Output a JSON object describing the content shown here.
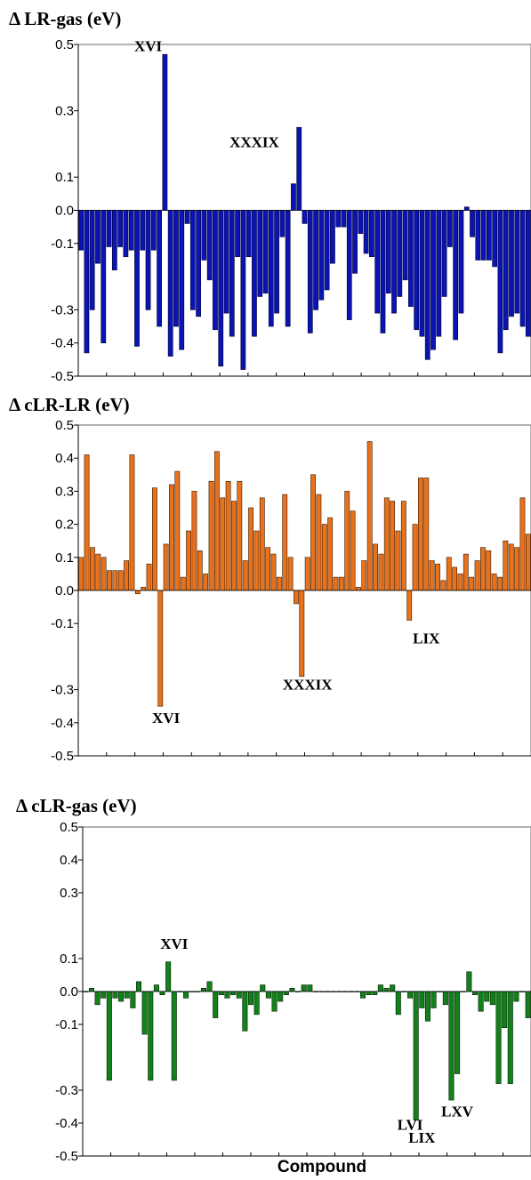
{
  "xlabel": "Compound",
  "chart_data": [
    {
      "type": "bar",
      "title": "Δ LR-gas (eV)",
      "color": "#0a14b4",
      "edge": "#000033",
      "ylim": [
        -0.5,
        0.5
      ],
      "yticks": [
        -0.5,
        -0.4,
        -0.3,
        -0.1,
        0.0,
        0.1,
        0.3,
        0.5
      ],
      "ytick_labels": [
        "-0.5",
        "-0.4",
        "-0.3",
        "-0.1",
        "0.0",
        "0.1",
        "0.3",
        "0.5"
      ],
      "annotations": [
        {
          "text": "XVI",
          "index": 12,
          "value": 0.48
        },
        {
          "text": "XXXIX",
          "index": 31,
          "value": 0.19
        }
      ],
      "values": [
        -0.12,
        -0.43,
        -0.3,
        -0.16,
        -0.4,
        -0.11,
        -0.18,
        -0.11,
        -0.14,
        -0.12,
        -0.41,
        -0.12,
        -0.3,
        -0.12,
        -0.35,
        0.47,
        -0.44,
        -0.35,
        -0.42,
        -0.04,
        -0.3,
        -0.32,
        -0.15,
        -0.21,
        -0.36,
        -0.47,
        -0.31,
        -0.38,
        -0.14,
        -0.48,
        -0.14,
        -0.38,
        -0.26,
        -0.25,
        -0.35,
        -0.31,
        -0.08,
        -0.35,
        0.08,
        0.25,
        -0.04,
        -0.37,
        -0.3,
        -0.27,
        -0.24,
        -0.16,
        -0.05,
        -0.05,
        -0.33,
        -0.19,
        -0.07,
        -0.13,
        -0.14,
        -0.31,
        -0.37,
        -0.25,
        -0.31,
        -0.26,
        -0.21,
        -0.29,
        -0.36,
        -0.38,
        -0.45,
        -0.42,
        -0.38,
        -0.26,
        -0.11,
        -0.39,
        -0.31,
        0.01,
        -0.08,
        -0.15,
        -0.15,
        -0.15,
        -0.17,
        -0.43,
        -0.36,
        -0.32,
        -0.31,
        -0.35,
        -0.38
      ]
    },
    {
      "type": "bar",
      "title": "Δ cLR-LR (eV)",
      "color": "#e8711c",
      "edge": "#3a1a00",
      "ylim": [
        -0.5,
        0.5
      ],
      "yticks": [
        -0.5,
        -0.4,
        -0.3,
        -0.1,
        0.0,
        0.1,
        0.2,
        0.3,
        0.4,
        0.5
      ],
      "ytick_labels": [
        "-0.5",
        "-0.4",
        "-0.3",
        "-0.1",
        "0.0",
        "0.1",
        "0.2",
        "0.3",
        "0.4",
        "0.5"
      ],
      "annotations": [
        {
          "text": "XVI",
          "index": 15,
          "value": -0.4
        },
        {
          "text": "XXXIX",
          "index": 40,
          "value": -0.3
        },
        {
          "text": "LIX",
          "index": 61,
          "value": -0.16
        }
      ],
      "values": [
        0.1,
        0.41,
        0.13,
        0.11,
        0.1,
        0.06,
        0.06,
        0.06,
        0.09,
        0.41,
        -0.01,
        0.01,
        0.08,
        0.31,
        -0.35,
        0.14,
        0.32,
        0.36,
        0.04,
        0.18,
        0.3,
        0.12,
        0.05,
        0.33,
        0.42,
        0.28,
        0.33,
        0.27,
        0.33,
        0.09,
        0.25,
        0.18,
        0.28,
        0.13,
        0.11,
        0.04,
        0.29,
        0.1,
        -0.04,
        -0.26,
        0.1,
        0.35,
        0.29,
        0.2,
        0.22,
        0.04,
        0.04,
        0.3,
        0.24,
        0.01,
        0.09,
        0.45,
        0.14,
        0.11,
        0.28,
        0.27,
        0.18,
        0.27,
        -0.09,
        0.2,
        0.34,
        0.34,
        0.09,
        0.08,
        0.03,
        0.1,
        0.07,
        0.05,
        0.11,
        0.04,
        0.09,
        0.13,
        0.12,
        0.05,
        0.04,
        0.15,
        0.14,
        0.13,
        0.28,
        0.17
      ]
    },
    {
      "type": "bar",
      "title": "Δ cLR-gas (eV)",
      "color": "#14801c",
      "edge": "#002200",
      "ylim": [
        -0.5,
        0.5
      ],
      "yticks": [
        -0.5,
        -0.4,
        -0.3,
        -0.1,
        0.0,
        0.1,
        0.3,
        0.4,
        0.5
      ],
      "ytick_labels": [
        "-0.5",
        "-0.4",
        "-0.3",
        "-0.1",
        "0.0",
        "0.1",
        "0.3",
        "0.4",
        "0.5"
      ],
      "annotations": [
        {
          "text": "XVI",
          "index": 15,
          "value": 0.13
        },
        {
          "text": "LVI",
          "index": 55,
          "value": -0.42
        },
        {
          "text": "LIX",
          "index": 57,
          "value": -0.46
        },
        {
          "text": "LXV",
          "index": 63,
          "value": -0.38
        }
      ],
      "values": [
        0.0,
        0.01,
        -0.04,
        -0.02,
        -0.27,
        -0.02,
        -0.03,
        -0.02,
        -0.05,
        0.03,
        -0.13,
        -0.27,
        0.02,
        -0.01,
        0.09,
        -0.27,
        0.0,
        -0.02,
        0.0,
        0.0,
        0.01,
        0.03,
        -0.08,
        -0.01,
        -0.02,
        -0.01,
        -0.02,
        -0.12,
        -0.04,
        -0.07,
        0.02,
        -0.02,
        -0.06,
        -0.03,
        -0.01,
        0.01,
        0.0,
        0.02,
        0.02,
        0.0,
        0.0,
        0.0,
        0.0,
        0.0,
        0.0,
        0.0,
        0.0,
        -0.02,
        -0.01,
        -0.01,
        0.02,
        0.01,
        0.02,
        -0.07,
        0.0,
        -0.02,
        -0.39,
        -0.05,
        -0.09,
        -0.05,
        0.0,
        -0.04,
        -0.33,
        -0.25,
        0.0,
        0.06,
        -0.01,
        -0.06,
        -0.03,
        -0.04,
        -0.28,
        -0.11,
        -0.28,
        -0.03,
        0.0,
        -0.08
      ]
    }
  ]
}
